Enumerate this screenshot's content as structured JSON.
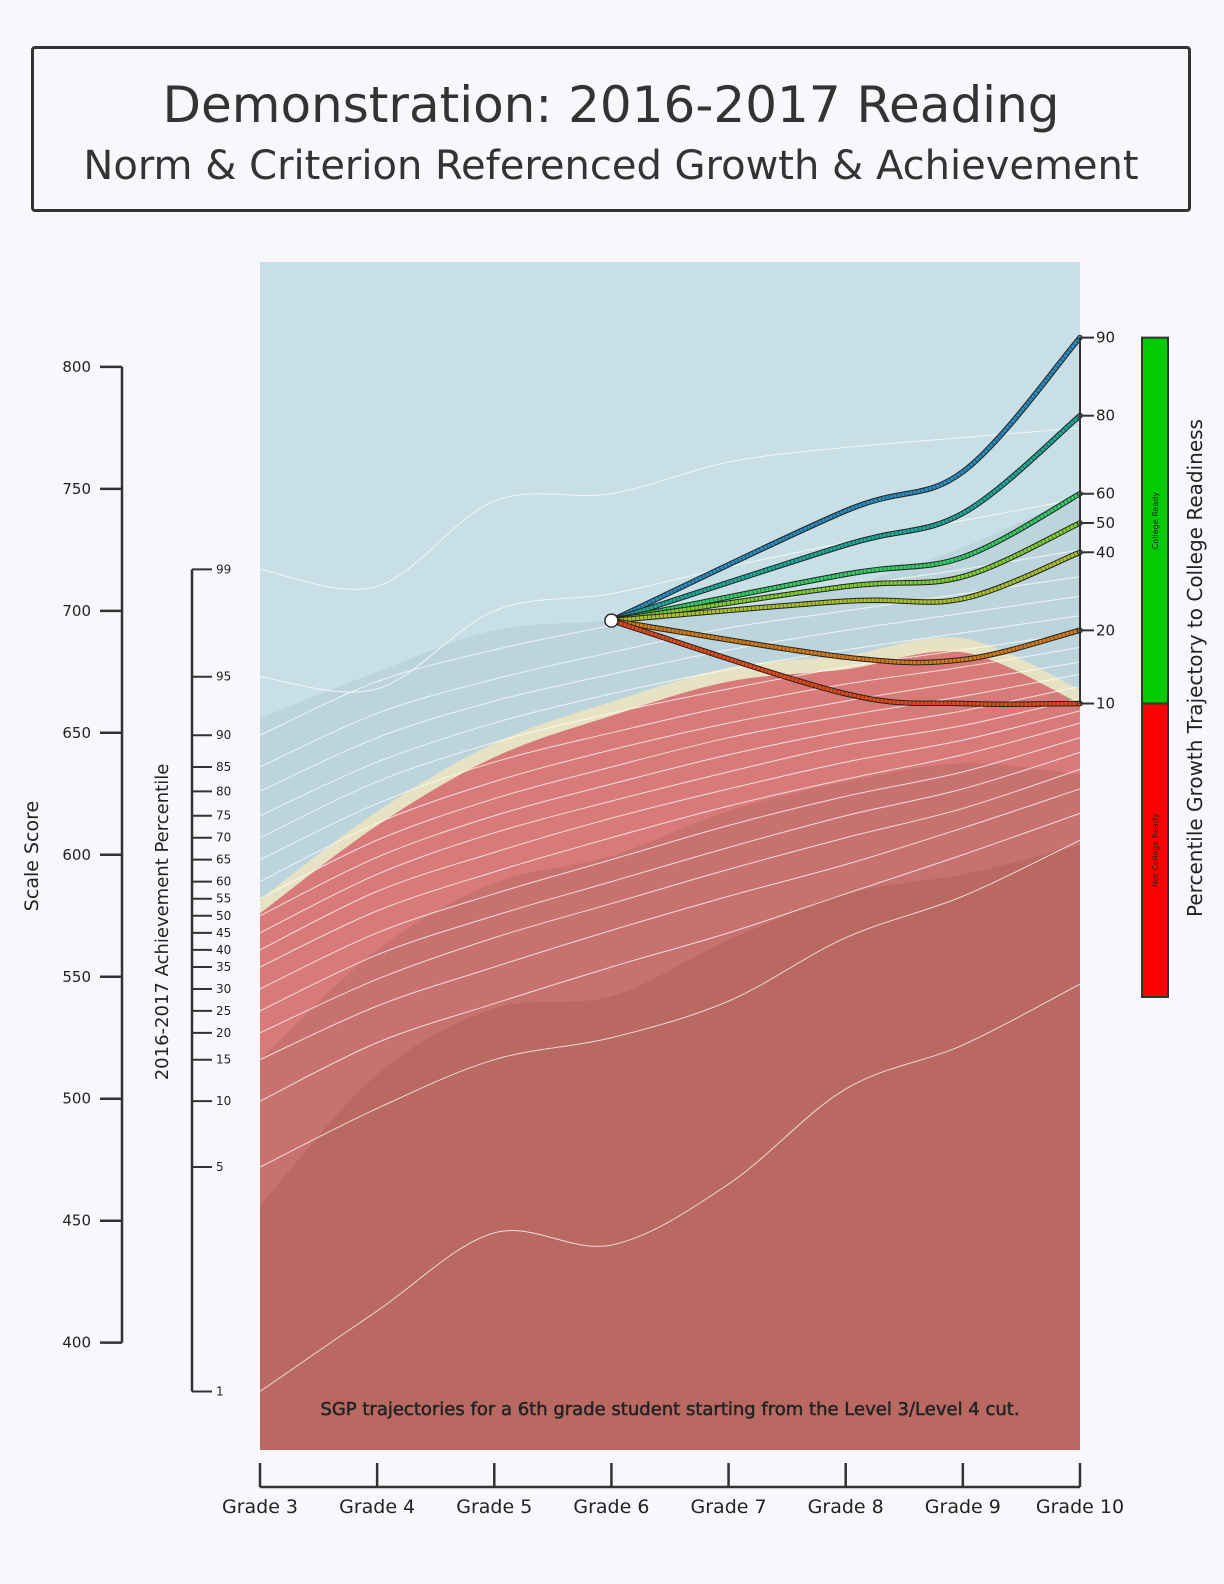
{
  "title": "Demonstration: 2016-2017 Reading",
  "subtitle": "Norm & Criterion Referenced Growth & Achievement",
  "colors": {
    "background": "#f8f8fc",
    "panel_above": "#c8dfe6",
    "panel_upper_band": "#bcd4dc",
    "cut_band": "#e6e2c3",
    "below_light": "#d87a7a",
    "below_mid": "#c87270",
    "below_dark": "#b96862",
    "college_ready": "#00cc00",
    "not_college_ready": "#ff0000"
  },
  "chart_data": {
    "type": "line",
    "x_axis": {
      "categories": [
        "Grade 3",
        "Grade 4",
        "Grade 5",
        "Grade 6",
        "Grade 7",
        "Grade 8",
        "Grade 9",
        "Grade 10"
      ]
    },
    "scale_axis": {
      "label": "Scale Score",
      "ticks": [
        400,
        450,
        500,
        550,
        600,
        650,
        700,
        750,
        800
      ],
      "range": [
        356,
        843
      ]
    },
    "achievement_axis": {
      "label": "2016-2017 Achievement Percentile",
      "ticks": [
        {
          "pct": "1",
          "score": 380
        },
        {
          "pct": "5",
          "score": 472
        },
        {
          "pct": "10",
          "score": 499
        },
        {
          "pct": "15",
          "score": 516
        },
        {
          "pct": "20",
          "score": 527
        },
        {
          "pct": "25",
          "score": 536
        },
        {
          "pct": "30",
          "score": 545
        },
        {
          "pct": "35",
          "score": 554
        },
        {
          "pct": "40",
          "score": 561
        },
        {
          "pct": "45",
          "score": 568
        },
        {
          "pct": "50",
          "score": 575
        },
        {
          "pct": "55",
          "score": 582
        },
        {
          "pct": "60",
          "score": 589
        },
        {
          "pct": "65",
          "score": 598
        },
        {
          "pct": "70",
          "score": 607
        },
        {
          "pct": "75",
          "score": 616
        },
        {
          "pct": "80",
          "score": 626
        },
        {
          "pct": "85",
          "score": 636
        },
        {
          "pct": "90",
          "score": 649
        },
        {
          "pct": "95",
          "score": 673
        },
        {
          "pct": "99",
          "score": 717
        }
      ]
    },
    "growth_axis": {
      "label": "Percentile Growth Trajectory to College Readiness",
      "ticks": [
        {
          "pct": "10",
          "score": 662
        },
        {
          "pct": "20",
          "score": 692
        },
        {
          "pct": "40",
          "score": 724
        },
        {
          "pct": "50",
          "score": 736
        },
        {
          "pct": "60",
          "score": 748
        },
        {
          "pct": "80",
          "score": 780
        },
        {
          "pct": "90",
          "score": 812
        }
      ],
      "ready_label": "College Ready",
      "not_ready_label": "Not College Ready",
      "ready_range": [
        662,
        812
      ]
    },
    "cut_scores": {
      "level4": [
        576,
        612,
        640,
        657,
        671,
        676,
        683,
        662
      ],
      "level3": [
        456,
        510,
        537,
        542,
        565,
        584,
        592,
        604
      ],
      "upper": [
        656,
        675,
        692,
        696,
        701,
        710,
        726,
        748
      ]
    },
    "percentile_lines": [
      [
        380,
        413,
        445,
        440,
        465,
        504,
        522,
        547
      ],
      [
        472,
        496,
        516,
        525,
        540,
        566,
        583,
        606
      ],
      [
        499,
        523,
        539,
        554,
        568,
        584,
        600,
        617
      ],
      [
        516,
        538,
        554,
        569,
        583,
        596,
        611,
        627
      ],
      [
        527,
        549,
        566,
        580,
        594,
        607,
        619,
        635
      ],
      [
        536,
        559,
        575,
        589,
        603,
        616,
        627,
        642
      ],
      [
        545,
        568,
        584,
        598,
        612,
        624,
        634,
        648
      ],
      [
        554,
        577,
        593,
        607,
        620,
        631,
        641,
        654
      ],
      [
        561,
        585,
        601,
        615,
        627,
        638,
        647,
        659
      ],
      [
        568,
        592,
        609,
        622,
        634,
        645,
        653,
        664
      ],
      [
        575,
        599,
        616,
        629,
        641,
        651,
        659,
        669
      ],
      [
        582,
        606,
        623,
        636,
        648,
        657,
        665,
        674
      ],
      [
        589,
        613,
        630,
        643,
        654,
        663,
        671,
        679
      ],
      [
        598,
        621,
        638,
        650,
        661,
        670,
        677,
        685
      ],
      [
        607,
        630,
        646,
        658,
        668,
        677,
        684,
        691
      ],
      [
        616,
        638,
        654,
        666,
        676,
        684,
        691,
        698
      ],
      [
        626,
        648,
        663,
        674,
        684,
        692,
        699,
        706
      ],
      [
        636,
        658,
        672,
        683,
        693,
        700,
        707,
        714
      ],
      [
        649,
        671,
        684,
        694,
        703,
        710,
        717,
        725
      ],
      [
        673,
        668,
        700,
        707,
        718,
        728,
        737,
        746
      ],
      [
        717,
        710,
        745,
        748,
        761,
        767,
        771,
        775
      ]
    ],
    "start_point": {
      "grade": "Grade 6",
      "score": 696
    },
    "trajectories": [
      {
        "pct": "90",
        "color": "#2b8cbe",
        "values": [
          696,
          741,
          757,
          812
        ]
      },
      {
        "pct": "80",
        "color": "#1fa89a",
        "values": [
          696,
          727,
          740,
          780
        ]
      },
      {
        "pct": "60",
        "color": "#33cc66",
        "values": [
          696,
          715,
          722,
          748
        ]
      },
      {
        "pct": "50",
        "color": "#7fcc33",
        "values": [
          696,
          710,
          714,
          736
        ]
      },
      {
        "pct": "40",
        "color": "#a8c030",
        "values": [
          696,
          704,
          705,
          724
        ]
      },
      {
        "pct": "20",
        "color": "#d07a1e",
        "values": [
          696,
          681,
          680,
          692
        ]
      },
      {
        "pct": "10",
        "color": "#e04a1a",
        "values": [
          696,
          666,
          662,
          662
        ]
      }
    ],
    "annotation": "SGP trajectories for a 6th grade student starting from the Level 3/Level 4 cut."
  }
}
